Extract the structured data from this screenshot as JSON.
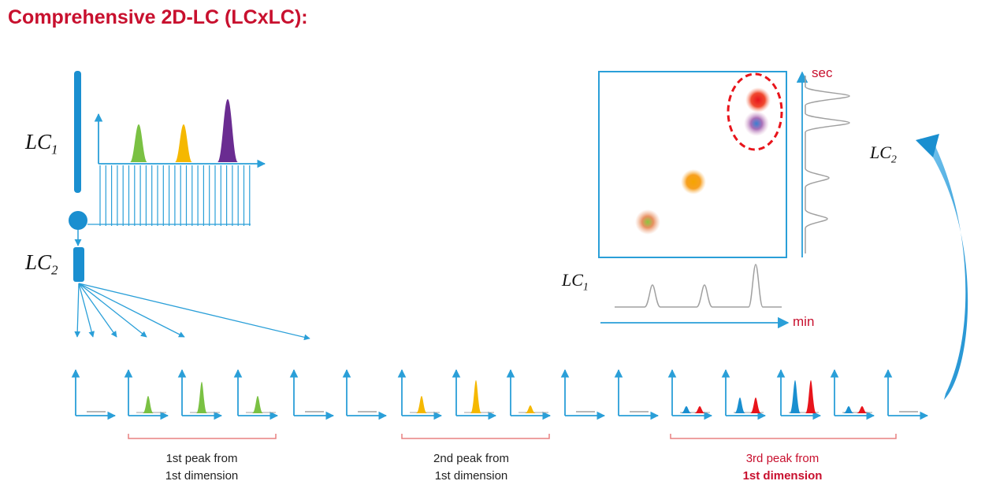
{
  "title": "Comprehensive 2D-LC (LCxLC):",
  "labels": {
    "lc1": {
      "main": "LC",
      "sub": "1"
    },
    "lc2": {
      "main": "LC",
      "sub": "2"
    }
  },
  "plot2d": {
    "y_unit": "sec",
    "x_unit": "min"
  },
  "groups": [
    {
      "line1": "1st peak from",
      "line2": "1st dimension"
    },
    {
      "line1": "2nd peak from",
      "line2": "1st dimension"
    },
    {
      "line1": "3rd peak from",
      "line2": "1st dimension"
    }
  ],
  "colors": {
    "title": "#c8102e",
    "axis_blue": "#2a9fd8",
    "column_blue": "#1a8fd0",
    "green": "#7ac143",
    "yellow": "#f5b800",
    "purple": "#6a2c91",
    "red": "#e8141b",
    "blue_peak": "#1a8fd0",
    "bracket": "#e88080",
    "trace_gray": "#a0a0a0"
  },
  "icons": [
    "arrow-up-icon",
    "arrow-right-icon",
    "curved-return-arrow-icon",
    "column-icon",
    "valve-icon"
  ]
}
